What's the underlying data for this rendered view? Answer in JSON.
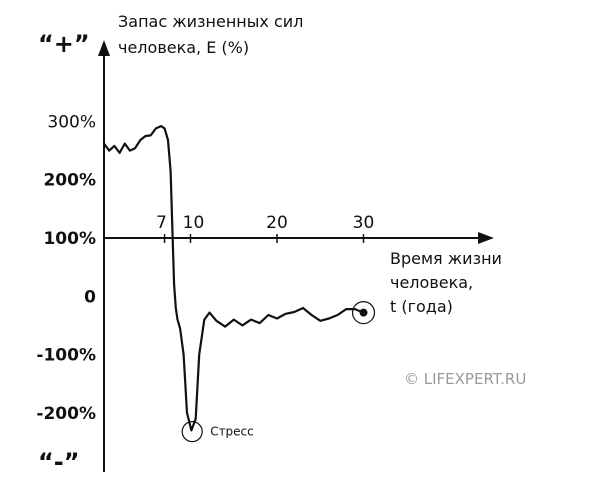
{
  "chart_data": {
    "type": "line",
    "ylabel_lines": [
      "Запас жизненных сил",
      "человека,  E (%)"
    ],
    "xlabel_lines": [
      "Время жизни",
      "человека,",
      "t (года)"
    ],
    "y_top_sign": "“+”",
    "y_bottom_sign": "“-”",
    "yticks": [
      {
        "value": 300,
        "label": "300%",
        "bold": false
      },
      {
        "value": 200,
        "label": "200%",
        "bold": true
      },
      {
        "value": 100,
        "label": "100%",
        "bold": true
      },
      {
        "value": 0,
        "label": "0",
        "bold": true
      },
      {
        "value": -100,
        "label": "-100%",
        "bold": true
      },
      {
        "value": -200,
        "label": "-200%",
        "bold": true
      }
    ],
    "xticks": [
      {
        "value": 7,
        "label": "7"
      },
      {
        "value": 10,
        "label": "10"
      },
      {
        "value": 20,
        "label": "20"
      },
      {
        "value": 30,
        "label": "30"
      }
    ],
    "axis_x_at_y": 100,
    "xlim": [
      0,
      45
    ],
    "ylim": [
      -260,
      420
    ],
    "series": [
      {
        "x": [
          0,
          0.6,
          1.2,
          1.8,
          2.4,
          3.0,
          3.6,
          4.2,
          4.8,
          5.4,
          6.0,
          6.6,
          7.0,
          7.4,
          7.7,
          7.9,
          8.1,
          8.3,
          8.5,
          8.8,
          9.2,
          9.6,
          10.1,
          10.6,
          11.0,
          11.6,
          12.2,
          13.0,
          14.0,
          15.0,
          16.0,
          17.0,
          18.0,
          19.0,
          20.0,
          21.0,
          22.0,
          23.0,
          24.0,
          25.0,
          26.0,
          27.0,
          28.0,
          29.0,
          30.0
        ],
        "y": [
          262,
          250,
          258,
          246,
          262,
          250,
          254,
          268,
          275,
          276,
          288,
          292,
          288,
          268,
          215,
          120,
          20,
          -20,
          -40,
          -55,
          -100,
          -200,
          -230,
          -210,
          -100,
          -40,
          -28,
          -42,
          -52,
          -40,
          -50,
          -40,
          -46,
          -32,
          -38,
          -30,
          -27,
          -20,
          -32,
          -42,
          -38,
          -32,
          -22,
          -22,
          -28
        ]
      }
    ],
    "annotations": [
      {
        "label": "Стресс",
        "x": 10.2,
        "y": -232
      },
      {
        "label": "",
        "x": 30.0,
        "y": -28
      }
    ],
    "watermark": "© LIFEXPERT.RU"
  }
}
